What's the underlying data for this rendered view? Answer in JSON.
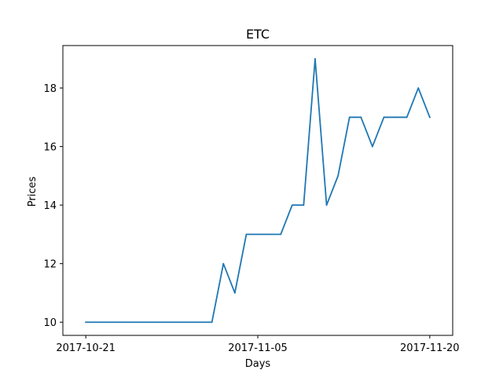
{
  "chart_data": {
    "type": "line",
    "title": "ETC",
    "xlabel": "Days",
    "ylabel": "Prices",
    "xlim": [
      "2017-10-19",
      "2017-11-22"
    ],
    "ylim": [
      9.55,
      19.45
    ],
    "x_ticks": [
      "2017-10-21",
      "2017-11-05",
      "2017-11-20"
    ],
    "y_ticks": [
      10,
      12,
      14,
      16,
      18
    ],
    "grid": false,
    "legend": "none",
    "series": [
      {
        "color": "#1f77b4",
        "x": [
          "2017-10-21",
          "2017-10-22",
          "2017-10-23",
          "2017-10-24",
          "2017-10-25",
          "2017-10-26",
          "2017-10-27",
          "2017-10-28",
          "2017-10-29",
          "2017-10-30",
          "2017-10-31",
          "2017-11-01",
          "2017-11-02",
          "2017-11-03",
          "2017-11-04",
          "2017-11-05",
          "2017-11-06",
          "2017-11-07",
          "2017-11-08",
          "2017-11-09",
          "2017-11-10",
          "2017-11-11",
          "2017-11-12",
          "2017-11-13",
          "2017-11-14",
          "2017-11-15",
          "2017-11-16",
          "2017-11-17",
          "2017-11-18",
          "2017-11-19",
          "2017-11-20"
        ],
        "values": [
          10,
          10,
          10,
          10,
          10,
          10,
          10,
          10,
          10,
          10,
          10,
          10,
          12,
          11,
          13,
          13,
          13,
          13,
          14,
          14,
          19,
          14,
          15,
          17,
          17,
          16,
          17,
          17,
          17,
          18,
          17
        ]
      }
    ]
  }
}
